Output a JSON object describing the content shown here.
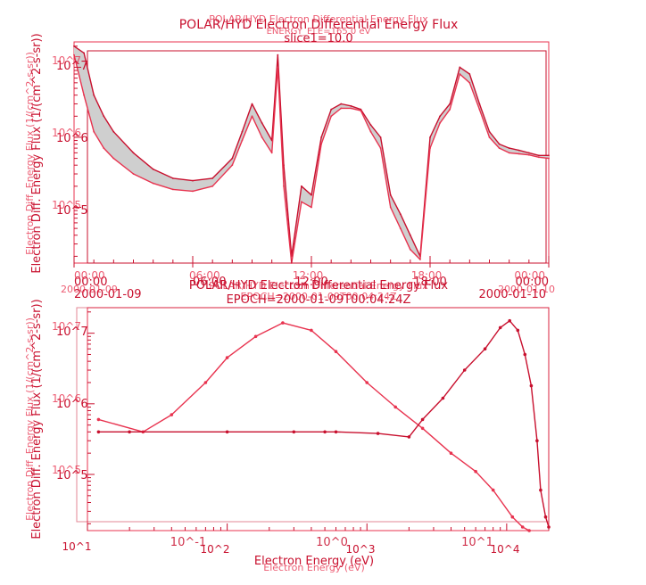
{
  "chart_data": [
    {
      "type": "line",
      "title": "POLAR/HYD Electron Differential Energy Flux",
      "title_ghost": "POLAR/HYD Electron Differential Energy Flux",
      "subtitle": "slice1=10.0",
      "subtitle_ghost": "ENERGY_ELE=165.0 eV",
      "ylabel": "Electron Diff. Energy Flux (1/(cm^2-s-sr))",
      "ylabel_ghost": "Electron Diff. Energy Flux (1/(cm^2-s-sr))",
      "y_scale": "log",
      "ylim": [
        16000,
        23000000
      ],
      "x_type": "time",
      "xlim": [
        "2000-01-09 00:00",
        "2000-01-10 00:00"
      ],
      "x_tick_labels": [
        "00:00",
        "06:00",
        "12:00",
        "18:00",
        "00:00"
      ],
      "x_tick_labels_ghost": [
        "00:00",
        "06:00",
        "12:00",
        "18:00",
        "00:00"
      ],
      "x_date_left": "2000-01-09",
      "x_date_left_ghost": "2000-01-09",
      "x_date_right": "2000-01-10",
      "x_date_right_ghost": "2000-01-10",
      "y_tick_labels": [
        "10^5",
        "10^6",
        "10^7"
      ],
      "y_tick_labels_ghost": [
        "10^5",
        "10^6",
        "10^7"
      ],
      "x_hours": [
        0,
        0.5,
        1,
        1.5,
        2,
        3,
        4,
        5,
        6,
        7,
        8,
        8.5,
        9,
        9.5,
        10,
        10.3,
        10.6,
        11,
        11.5,
        12,
        12.5,
        13,
        13.5,
        14,
        14.5,
        15,
        15.5,
        16,
        16.5,
        17,
        17.5,
        18,
        18.5,
        19,
        19.5,
        20,
        20.5,
        21,
        21.5,
        22,
        22.5,
        23,
        23.5,
        24
      ],
      "series": [
        {
          "values": [
            20000000,
            16000000,
            4000000,
            2000000,
            1200000,
            600000,
            350000,
            260000,
            240000,
            260000,
            500000,
            1200000,
            3000000,
            1600000,
            900000,
            15000000,
            400000,
            20000,
            200000,
            150000,
            1000000,
            2500000,
            3000000,
            2800000,
            2500000,
            1500000,
            1000000,
            150000,
            80000,
            40000,
            20000,
            1000000,
            2000000,
            3000000,
            10000000,
            8000000,
            3000000,
            1200000,
            800000,
            700000,
            650000,
            600000,
            550000,
            550000
          ],
          "color": "#c8102e"
        },
        {
          "values": [
            15000000,
            4000000,
            1200000,
            700000,
            500000,
            300000,
            220000,
            180000,
            170000,
            200000,
            400000,
            900000,
            2000000,
            1000000,
            600000,
            10000000,
            200000,
            16000,
            120000,
            100000,
            800000,
            2000000,
            2600000,
            2600000,
            2400000,
            1200000,
            700000,
            100000,
            50000,
            25000,
            18000,
            700000,
            1600000,
            2500000,
            8000000,
            6000000,
            2500000,
            1000000,
            700000,
            600000,
            580000,
            560000,
            520000,
            500000
          ],
          "color": "#e8334f"
        }
      ]
    },
    {
      "type": "line",
      "title": "POLAR/HYD Electron Differential Energy Flux",
      "title_ghost": "POLAR/HYD Electron Differential Energy Flux",
      "subtitle": "EPOCH=2000-01-09T00:04:24Z",
      "subtitle_ghost": "EPOCH=2000-01-09T00:04:24Z",
      "xlabel": "Electron Energy (eV)",
      "xlabel_ghost": "Electron Energy (eV)",
      "ylabel": "Electron Diff. Energy Flux (1/(cm^2-s-sr))",
      "ylabel_ghost": "Electron Diff. Energy Flux (1/(cm^2-s-sr))",
      "x_scale": "log",
      "y_scale": "log",
      "xlim": [
        10,
        20000
      ],
      "ylim": [
        16000,
        23000000
      ],
      "x_tick_labels": [
        "10^1",
        "10^2",
        "10^3",
        "10^4"
      ],
      "x_tick_labels_ghost": [
        "10^-1",
        "10^0",
        "10^1"
      ],
      "y_tick_labels": [
        "10^5",
        "10^6",
        "10^7"
      ],
      "y_tick_labels_ghost": [
        "10^5",
        "10^6",
        "10^7"
      ],
      "series": [
        {
          "x": [
            12,
            25,
            40,
            70,
            100,
            160,
            250,
            400,
            600,
            1000,
            1600,
            2500,
            4000,
            6000,
            8000,
            11000,
            13000,
            14500
          ],
          "y": [
            600000,
            400000,
            700000,
            2000000,
            4500000,
            9000000,
            14000000,
            11000000,
            5500000,
            2000000,
            900000,
            450000,
            200000,
            110000,
            60000,
            25000,
            18000,
            16000
          ],
          "color": "#e8334f"
        },
        {
          "x": [
            12,
            20,
            100,
            300,
            500,
            600,
            1200,
            2000,
            2500,
            3500,
            5000,
            7000,
            9000,
            10500,
            12000,
            13500,
            15000,
            16500,
            17500,
            19000,
            20000
          ],
          "y": [
            400000,
            400000,
            400000,
            400000,
            400000,
            400000,
            380000,
            340000,
            600000,
            1200000,
            3000000,
            6000000,
            12000000,
            15000000,
            11000000,
            5000000,
            1800000,
            300000,
            60000,
            25000,
            18000
          ],
          "color": "#c8102e"
        }
      ]
    }
  ]
}
